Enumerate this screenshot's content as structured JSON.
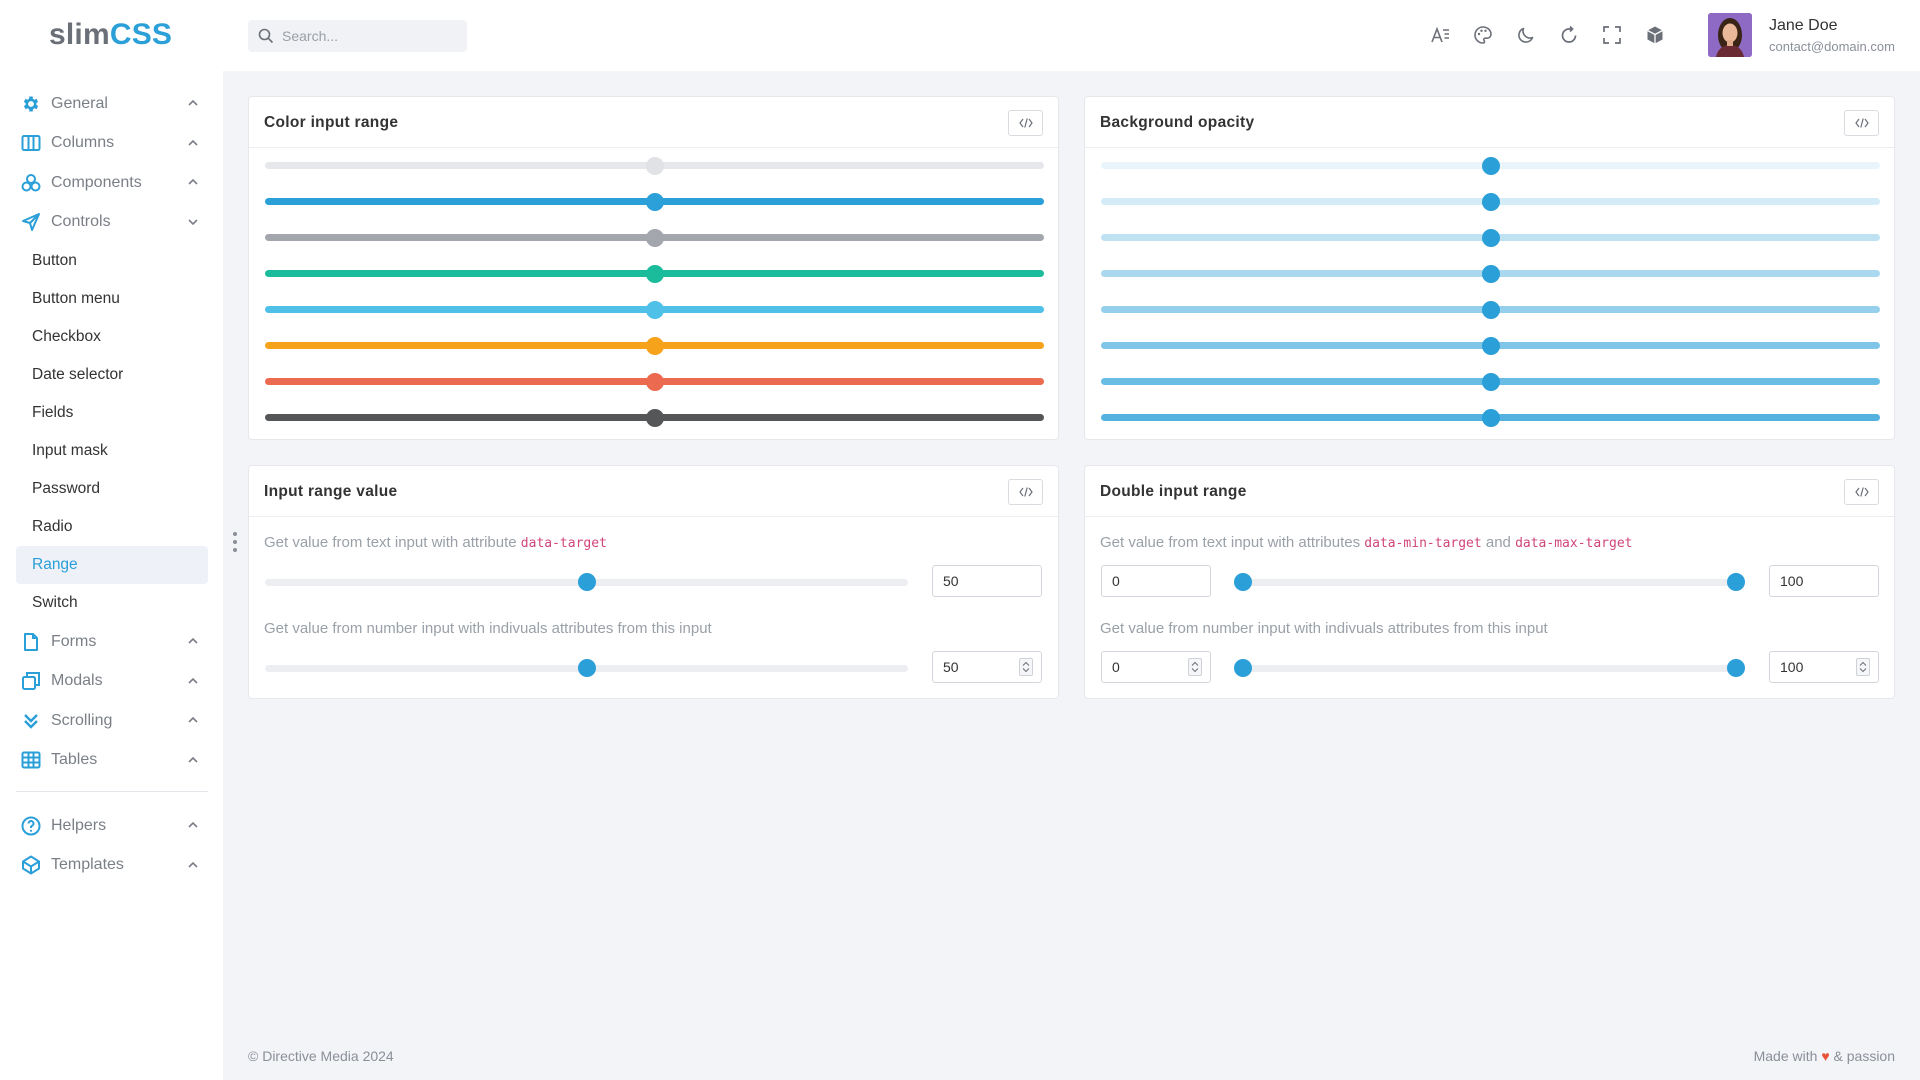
{
  "brand": {
    "part1": "slim",
    "part2": "CSS"
  },
  "search": {
    "placeholder": "Search..."
  },
  "user": {
    "name": "Jane Doe",
    "email": "contact@domain.com"
  },
  "topbar_icons": [
    "font-size-icon",
    "palette-icon",
    "moon-icon",
    "refresh-icon",
    "fullscreen-icon",
    "cube-icon"
  ],
  "sidebar": {
    "groups_top": [
      {
        "label": "General",
        "icon": "gear-icon",
        "expanded": false
      },
      {
        "label": "Columns",
        "icon": "columns-icon",
        "expanded": false
      },
      {
        "label": "Components",
        "icon": "components-icon",
        "expanded": false
      },
      {
        "label": "Controls",
        "icon": "send-icon",
        "expanded": true
      }
    ],
    "controls_items": [
      "Button",
      "Button menu",
      "Checkbox",
      "Date selector",
      "Fields",
      "Input mask",
      "Password",
      "Radio",
      "Range",
      "Switch"
    ],
    "active_item": "Range",
    "groups_bottom": [
      {
        "label": "Forms",
        "icon": "file-icon"
      },
      {
        "label": "Modals",
        "icon": "modals-icon"
      },
      {
        "label": "Scrolling",
        "icon": "double-chevron-down-icon"
      },
      {
        "label": "Tables",
        "icon": "table-icon"
      }
    ],
    "groups_extra": [
      {
        "label": "Helpers",
        "icon": "help-circle-icon"
      },
      {
        "label": "Templates",
        "icon": "templates-icon"
      }
    ]
  },
  "cards": {
    "color_range": {
      "title": "Color input range",
      "value_fraction": 0.5,
      "sliders": [
        {
          "color": "#e6e7ea",
          "thumb": "#e1e2e5"
        },
        {
          "color": "#2a9fd8",
          "thumb": "#2a9fd8"
        },
        {
          "color": "#a3a6ad",
          "thumb": "#a3a6ad"
        },
        {
          "color": "#1abc9c",
          "thumb": "#1abc9c"
        },
        {
          "color": "#4fc0e8",
          "thumb": "#4fc0e8"
        },
        {
          "color": "#f7a21b",
          "thumb": "#f7a21b"
        },
        {
          "color": "#ec6a4f",
          "thumb": "#ec6a4f"
        },
        {
          "color": "#555658",
          "thumb": "#555658"
        }
      ]
    },
    "bg_opacity": {
      "title": "Background opacity",
      "value_fraction": 0.5,
      "thumb_color": "#2a9fd8",
      "opacities": [
        0.1,
        0.2,
        0.3,
        0.4,
        0.5,
        0.6,
        0.7,
        0.8
      ]
    },
    "range_value": {
      "title": "Input range value",
      "desc1_text": "Get value from text input with attribute ",
      "desc1_code": "data-target",
      "value1": "50",
      "desc2_text": "Get value from number input with indivuals attributes from this input",
      "value2": "50",
      "fraction": 0.5
    },
    "double_range": {
      "title": "Double input range",
      "desc1_text": "Get value from text input with attributes ",
      "desc1_code1": "data-min-target",
      "desc1_and": " and ",
      "desc1_code2": "data-max-target",
      "min1": "0",
      "max1": "100",
      "desc2_text": "Get value from number input with indivuals attributes from this input",
      "min2": "0",
      "max2": "100"
    }
  },
  "footer": {
    "left": "© Directive Media 2024",
    "made": "Made with",
    "heart": "♥",
    "passion": "& passion"
  },
  "colors": {
    "accent": "#2a9fd8"
  }
}
